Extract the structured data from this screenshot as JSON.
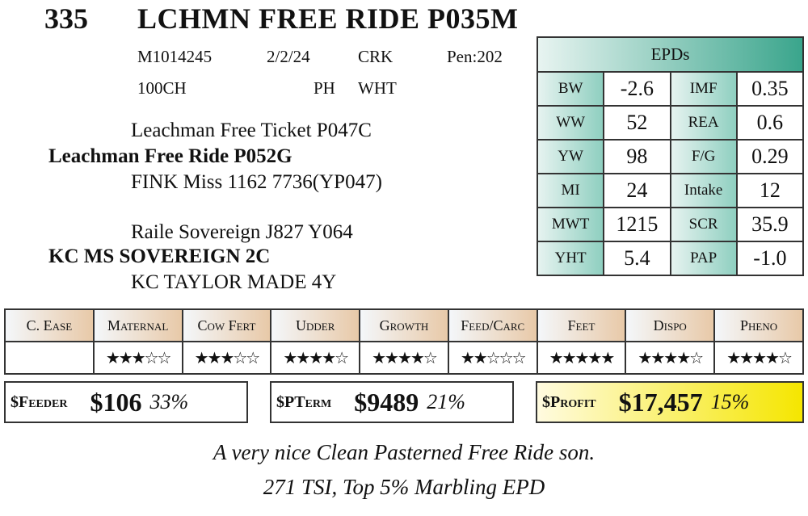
{
  "header": {
    "lot": "335",
    "name": "LCHMN FREE RIDE P035M"
  },
  "info": [
    [
      "M1014245",
      "2/2/24",
      "CRK",
      "Pen:202"
    ],
    [
      "100CH",
      "PH",
      "WHT"
    ]
  ],
  "pedigree": [
    "Leachman Free Ticket P047C",
    "Leachman Free Ride P052G",
    "FINK Miss 1162 7736(YP047)",
    "Raile Sovereign J827 Y064",
    "KC MS SOVEREIGN 2C",
    "KC TAYLOR MADE 4Y"
  ],
  "epds": {
    "title": "EPDs",
    "rows": [
      [
        "BW",
        "-2.6",
        "IMF",
        "0.35"
      ],
      [
        "WW",
        "52",
        "REA",
        "0.6"
      ],
      [
        "YW",
        "98",
        "F/G",
        "0.29"
      ],
      [
        "MI",
        "24",
        "Intake",
        "12"
      ],
      [
        "MWT",
        "1215",
        "SCR",
        "35.9"
      ],
      [
        "YHT",
        "5.4",
        "PAP",
        "-1.0"
      ]
    ]
  },
  "ratings": {
    "categories": [
      "C. Ease",
      "Maternal",
      "Cow Fert",
      "Udder",
      "Growth",
      "Feed/Carc",
      "Feet",
      "Dispo",
      "Pheno"
    ],
    "stars": [
      null,
      3,
      3,
      4,
      4,
      2,
      5,
      4,
      4
    ]
  },
  "indexes": [
    {
      "label": "$Feeder",
      "value": "$106",
      "pct": "33%"
    },
    {
      "label": "$PTerm",
      "value": "$9489",
      "pct": "21%"
    },
    {
      "label": "$Profit",
      "value": "$17,457",
      "pct": "15%"
    }
  ],
  "comments": [
    "A very nice Clean Pasterned Free Ride son.",
    "271 TSI, Top 5% Marbling EPD"
  ]
}
